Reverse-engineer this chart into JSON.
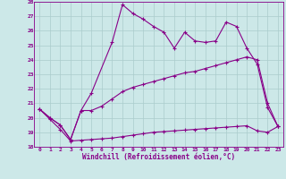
{
  "xlabel": "Windchill (Refroidissement éolien,°C)",
  "x_labels": [
    "0",
    "1",
    "2",
    "3",
    "4",
    "5",
    "6",
    "7",
    "8",
    "9",
    "10",
    "11",
    "12",
    "13",
    "14",
    "15",
    "16",
    "17",
    "18",
    "19",
    "20",
    "21",
    "22",
    "23"
  ],
  "ylim": [
    18,
    28
  ],
  "xlim": [
    -0.5,
    23.5
  ],
  "yticks": [
    18,
    19,
    20,
    21,
    22,
    23,
    24,
    25,
    26,
    27,
    28
  ],
  "background_color": "#cce8e8",
  "grid_color": "#aacccc",
  "line_color": "#880088",
  "line1_x": [
    0,
    1,
    2,
    3,
    4,
    5,
    7,
    8,
    9,
    10,
    11,
    12,
    13,
    14,
    15,
    16,
    17,
    18,
    19,
    20,
    21,
    22,
    23
  ],
  "line1_y": [
    20.6,
    20.0,
    19.5,
    18.5,
    20.5,
    21.7,
    25.2,
    27.8,
    27.2,
    26.8,
    26.3,
    25.9,
    24.8,
    25.9,
    25.3,
    25.2,
    25.3,
    26.6,
    26.3,
    24.8,
    23.7,
    20.7,
    19.4
  ],
  "line2_x": [
    0,
    1,
    2,
    3,
    4,
    5,
    6,
    7,
    8,
    9,
    10,
    11,
    12,
    13,
    14,
    15,
    16,
    17,
    18,
    19,
    20,
    21,
    22,
    23
  ],
  "line2_y": [
    20.6,
    20.0,
    19.5,
    18.5,
    20.5,
    20.5,
    20.8,
    21.3,
    21.8,
    22.1,
    22.3,
    22.5,
    22.7,
    22.9,
    23.1,
    23.2,
    23.4,
    23.6,
    23.8,
    24.0,
    24.2,
    24.0,
    21.0,
    19.4
  ],
  "line3_x": [
    0,
    1,
    2,
    3,
    4,
    5,
    6,
    7,
    8,
    9,
    10,
    11,
    12,
    13,
    14,
    15,
    16,
    17,
    18,
    19,
    20,
    21,
    22,
    23
  ],
  "line3_y": [
    20.6,
    19.9,
    19.2,
    18.4,
    18.45,
    18.5,
    18.55,
    18.6,
    18.7,
    18.8,
    18.9,
    19.0,
    19.05,
    19.1,
    19.15,
    19.2,
    19.25,
    19.3,
    19.35,
    19.4,
    19.45,
    19.1,
    19.0,
    19.4
  ]
}
